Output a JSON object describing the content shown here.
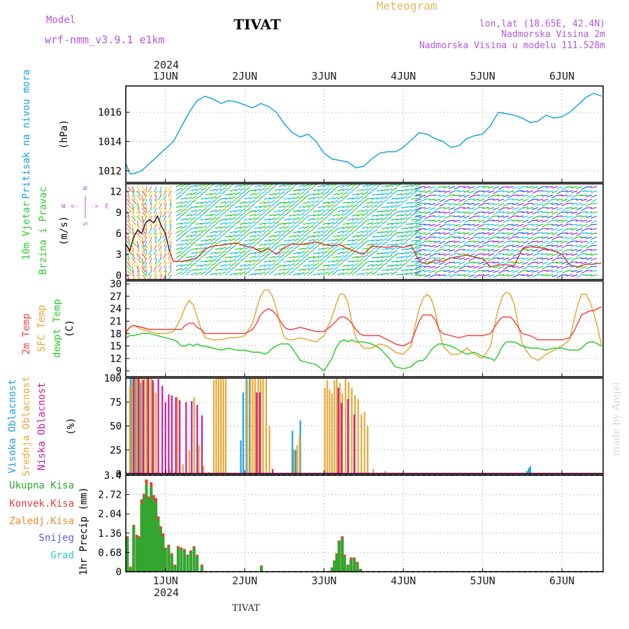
{
  "header": {
    "model_label": "Model",
    "model_name": "wrf-nmm_v3.9.1  e1km",
    "station": "TIVAT",
    "meteogram": "Meteogram",
    "lonlat": "lon,lat (18.65E, 42.4N)",
    "elevation": "Nadmorska Visina 2m",
    "model_elevation": "Nadmorska Visina u modelu 111.528m",
    "year": "2024",
    "footer_station": "TIVAT",
    "watermark": "made by Angel"
  },
  "colors": {
    "pressure": "#1aa3e0",
    "temp2m": "#f04848",
    "sfc": "#e6a838",
    "dewpt": "#2ecc2e",
    "cloud_high": "#1aa3e0",
    "cloud_mid": "#e6a838",
    "cloud_low": "#cc1a99",
    "rain_total": "#2ea82e",
    "rain_conv": "#f03a3a",
    "rain_frz": "#f08a30",
    "snow": "#6060e0",
    "hail": "#2ecccc",
    "purple_text": "#b455e0",
    "gold_text": "#e6b860"
  },
  "chart_data": [
    {
      "type": "line",
      "panel": "pressure",
      "ylabels": [
        "Pritisak na nivou mora",
        "(hPa)"
      ],
      "xlabels": [
        "1JUN",
        "2JUN",
        "3JUN",
        "4JUN",
        "5JUN",
        "6JUN"
      ],
      "yticks": [
        "1012",
        "1014",
        "1016"
      ],
      "ylim": [
        1011.2,
        1017.8
      ],
      "xlim": [
        0.5,
        6.52
      ],
      "x": [
        0.5,
        0.55,
        0.6,
        0.7,
        0.8,
        0.9,
        1.0,
        1.1,
        1.2,
        1.3,
        1.4,
        1.5,
        1.6,
        1.7,
        1.8,
        1.9,
        2.0,
        2.1,
        2.2,
        2.3,
        2.4,
        2.5,
        2.6,
        2.7,
        2.8,
        2.9,
        3.0,
        3.1,
        3.2,
        3.3,
        3.4,
        3.5,
        3.6,
        3.7,
        3.8,
        3.9,
        4.0,
        4.1,
        4.2,
        4.3,
        4.4,
        4.5,
        4.6,
        4.7,
        4.8,
        4.9,
        5.0,
        5.1,
        5.2,
        5.3,
        5.4,
        5.5,
        5.6,
        5.7,
        5.8,
        5.9,
        6.0,
        6.1,
        6.2,
        6.3,
        6.4,
        6.5
      ],
      "series": [
        {
          "key": "pressure",
          "values": [
            1012.5,
            1011.8,
            1011.8,
            1012.0,
            1012.5,
            1013.0,
            1013.5,
            1014.0,
            1015.0,
            1016.0,
            1016.8,
            1017.1,
            1016.9,
            1016.6,
            1016.8,
            1016.7,
            1016.5,
            1016.3,
            1016.6,
            1016.4,
            1016.0,
            1015.2,
            1014.6,
            1014.3,
            1014.5,
            1014.0,
            1013.2,
            1012.8,
            1012.7,
            1012.6,
            1012.2,
            1012.3,
            1012.8,
            1013.2,
            1013.3,
            1013.3,
            1013.6,
            1014.1,
            1014.6,
            1014.5,
            1014.2,
            1014.0,
            1013.6,
            1013.7,
            1014.2,
            1014.4,
            1014.5,
            1015.1,
            1016.0,
            1015.9,
            1015.8,
            1015.6,
            1015.3,
            1015.4,
            1015.8,
            1015.6,
            1015.7,
            1016.0,
            1016.5,
            1017.0,
            1017.3,
            1017.1
          ]
        }
      ]
    },
    {
      "type": "line",
      "panel": "wind",
      "ylabels": [
        "10m Vjetar",
        "Brzina i Pravac",
        "(m/s)"
      ],
      "compass": [
        "W",
        "E",
        "N",
        "S"
      ],
      "yticks": [
        "0",
        "3",
        "6",
        "9",
        "12"
      ],
      "ylim": [
        -0.6,
        13.1
      ],
      "xlim": [
        0.5,
        6.52
      ],
      "x": [
        0.5,
        0.55,
        0.6,
        0.65,
        0.7,
        0.75,
        0.8,
        0.85,
        0.9,
        0.95,
        1.0,
        1.05,
        1.1,
        1.2,
        1.3,
        1.4,
        1.5,
        1.6,
        1.7,
        1.8,
        1.9,
        2.0,
        2.1,
        2.2,
        2.3,
        2.4,
        2.5,
        2.6,
        2.7,
        2.8,
        2.9,
        3.0,
        3.1,
        3.2,
        3.3,
        3.4,
        3.5,
        3.6,
        3.7,
        3.8,
        3.9,
        4.0,
        4.1,
        4.2,
        4.3,
        4.4,
        4.5,
        4.6,
        4.7,
        4.8,
        4.9,
        5.0,
        5.1,
        5.2,
        5.3,
        5.4,
        5.5,
        5.6,
        5.7,
        5.8,
        5.9,
        6.0,
        6.1,
        6.2,
        6.3,
        6.4,
        6.5
      ],
      "series": [
        {
          "key": "speed",
          "values": [
            4.5,
            3.5,
            5.5,
            6.5,
            6.0,
            7.5,
            8.0,
            7.5,
            8.5,
            7.0,
            6.0,
            3.5,
            2.0,
            2.0,
            2.2,
            2.5,
            3.8,
            4.2,
            4.3,
            4.5,
            4.6,
            4.2,
            4.0,
            3.4,
            3.8,
            3.0,
            4.0,
            4.5,
            4.4,
            4.6,
            4.8,
            4.4,
            4.2,
            4.4,
            3.8,
            3.4,
            3.0,
            4.2,
            4.1,
            4.0,
            4.2,
            4.0,
            4.3,
            2.0,
            1.6,
            2.2,
            2.0,
            2.5,
            2.7,
            2.9,
            2.6,
            2.4,
            1.2,
            1.5,
            1.5,
            1.4,
            3.8,
            4.1,
            4.0,
            3.8,
            3.5,
            3.0,
            1.5,
            1.2,
            1.6,
            1.6,
            1.8
          ]
        }
      ]
    },
    {
      "type": "line",
      "panel": "temperature",
      "ylabels": [
        "2m Temp",
        "SFC Temp",
        "dewpt Temp",
        "(C)"
      ],
      "yticks": [
        "9",
        "12",
        "15",
        "18",
        "21",
        "24",
        "27",
        "30"
      ],
      "ylim": [
        7.6,
        30.7
      ],
      "xlim": [
        0.5,
        6.52
      ],
      "x": [
        0.5,
        0.55,
        0.6,
        0.7,
        0.8,
        0.9,
        1.0,
        1.1,
        1.15,
        1.2,
        1.25,
        1.3,
        1.35,
        1.4,
        1.45,
        1.5,
        1.6,
        1.7,
        1.8,
        1.9,
        2.0,
        2.1,
        2.15,
        2.2,
        2.25,
        2.3,
        2.35,
        2.4,
        2.45,
        2.5,
        2.55,
        2.6,
        2.7,
        2.8,
        2.9,
        3.0,
        3.1,
        3.15,
        3.2,
        3.25,
        3.3,
        3.35,
        3.4,
        3.45,
        3.5,
        3.6,
        3.7,
        3.8,
        3.9,
        4.0,
        4.1,
        4.15,
        4.2,
        4.25,
        4.3,
        4.35,
        4.4,
        4.45,
        4.5,
        4.6,
        4.7,
        4.8,
        4.9,
        5.0,
        5.1,
        5.15,
        5.2,
        5.25,
        5.3,
        5.35,
        5.4,
        5.45,
        5.5,
        5.6,
        5.7,
        5.8,
        5.9,
        6.0,
        6.1,
        6.15,
        6.2,
        6.25,
        6.3,
        6.35,
        6.4,
        6.45,
        6.5
      ],
      "series": [
        {
          "key": "sfc",
          "values": [
            18.0,
            19.5,
            20.0,
            19.0,
            18.5,
            18.0,
            18.0,
            18.5,
            20.0,
            22.0,
            24.5,
            26.0,
            25.0,
            22.0,
            19.0,
            17.0,
            16.5,
            16.5,
            17.0,
            17.0,
            17.5,
            20.5,
            24.0,
            27.0,
            28.5,
            28.5,
            27.0,
            24.0,
            20.0,
            17.0,
            16.5,
            16.5,
            17.0,
            16.5,
            16.0,
            17.5,
            22.0,
            25.0,
            27.5,
            27.5,
            25.5,
            21.0,
            17.0,
            15.5,
            14.5,
            14.5,
            15.5,
            15.0,
            13.5,
            13.0,
            15.0,
            20.0,
            24.0,
            26.5,
            27.5,
            26.5,
            23.5,
            19.0,
            15.0,
            13.0,
            13.0,
            14.5,
            13.0,
            12.0,
            15.0,
            20.0,
            24.0,
            27.0,
            28.0,
            27.5,
            25.0,
            20.0,
            15.5,
            12.5,
            11.5,
            13.0,
            14.0,
            15.0,
            16.5,
            21.0,
            25.0,
            27.5,
            27.5,
            26.0,
            23.0,
            19.5,
            15.0
          ]
        },
        {
          "key": "temp2m",
          "values": [
            18.5,
            19.5,
            20.0,
            19.5,
            19.0,
            19.0,
            19.0,
            19.0,
            19.0,
            19.0,
            20.0,
            20.5,
            20.5,
            19.5,
            19.0,
            18.0,
            18.0,
            18.0,
            18.0,
            18.0,
            18.0,
            19.0,
            20.5,
            22.5,
            23.5,
            24.0,
            23.5,
            22.5,
            21.0,
            19.5,
            19.0,
            19.0,
            19.5,
            19.0,
            18.5,
            18.5,
            20.0,
            21.0,
            22.0,
            22.0,
            21.5,
            20.5,
            19.0,
            18.0,
            17.5,
            17.5,
            17.5,
            16.5,
            15.5,
            15.0,
            16.0,
            18.5,
            21.0,
            22.5,
            22.5,
            22.5,
            21.5,
            19.0,
            18.0,
            17.5,
            17.0,
            17.5,
            17.5,
            17.5,
            18.0,
            19.5,
            21.0,
            22.0,
            22.0,
            22.0,
            21.0,
            19.5,
            18.0,
            17.5,
            16.5,
            16.5,
            16.5,
            16.5,
            17.0,
            18.5,
            20.5,
            22.5,
            23.0,
            23.5,
            23.5,
            24.0,
            24.5
          ]
        },
        {
          "key": "dewpt",
          "values": [
            17.0,
            17.5,
            17.5,
            18.0,
            18.0,
            17.5,
            17.0,
            16.5,
            16.0,
            15.0,
            15.0,
            15.5,
            15.0,
            15.5,
            15.0,
            15.0,
            14.5,
            14.0,
            14.5,
            14.0,
            14.0,
            13.5,
            13.5,
            13.5,
            13.0,
            13.5,
            14.5,
            15.0,
            15.5,
            15.5,
            15.5,
            14.5,
            11.5,
            11.0,
            10.5,
            9.0,
            12.0,
            14.5,
            16.0,
            16.5,
            16.0,
            16.5,
            16.0,
            16.0,
            16.0,
            15.5,
            14.5,
            12.5,
            10.0,
            9.5,
            10.0,
            11.0,
            11.5,
            11.5,
            12.5,
            14.0,
            15.0,
            15.5,
            15.5,
            15.0,
            14.0,
            13.0,
            13.5,
            12.5,
            12.0,
            11.5,
            13.0,
            15.0,
            16.0,
            16.0,
            16.0,
            15.5,
            15.0,
            14.5,
            14.5,
            14.0,
            14.5,
            14.5,
            14.0,
            14.0,
            14.0,
            14.5,
            15.5,
            16.0,
            16.0,
            15.5,
            15.0
          ]
        }
      ]
    },
    {
      "type": "bar",
      "panel": "clouds",
      "ylabels": [
        "Visoka Oblacnost",
        "Srednja Oblacnost",
        "Niska Oblacnost",
        "(%)"
      ],
      "yticks": [
        "0",
        "25",
        "50",
        "75",
        "100"
      ],
      "ylim": [
        0,
        100
      ],
      "xlim": [
        0.5,
        6.52
      ],
      "series": [
        {
          "key": "cloud_high",
          "x": [
            0.56,
            0.59,
            0.62,
            0.66,
            0.69,
            0.73,
            0.76,
            1.12,
            1.95,
            1.98,
            2.02,
            2.06,
            2.6,
            2.64,
            2.7,
            5.56,
            5.58,
            5.6
          ],
          "values": [
            100,
            100,
            100,
            98,
            95,
            100,
            100,
            2,
            35,
            85,
            100,
            100,
            45,
            25,
            56,
            3,
            6,
            8
          ]
        },
        {
          "key": "cloud_mid",
          "x": [
            0.55,
            0.58,
            0.61,
            0.64,
            0.67,
            0.7,
            0.73,
            0.76,
            0.79,
            0.82,
            0.85,
            0.88,
            1.05,
            1.15,
            1.22,
            1.3,
            1.36,
            1.42,
            1.48,
            1.55,
            1.61,
            1.64,
            1.67,
            1.7,
            1.73,
            1.76,
            2.03,
            2.07,
            2.1,
            2.13,
            2.17,
            2.2,
            2.23,
            2.27,
            2.31,
            2.62,
            2.66,
            2.69,
            3.01,
            3.04,
            3.07,
            3.1,
            3.13,
            3.16,
            3.2,
            3.23,
            3.27,
            3.31,
            3.35,
            3.39,
            3.43,
            3.47,
            3.51,
            3.55,
            3.62,
            3.77
          ],
          "values": [
            92,
            98,
            100,
            100,
            100,
            100,
            100,
            100,
            99,
            100,
            95,
            85,
            5,
            80,
            10,
            25,
            80,
            30,
            8,
            2,
            98,
            100,
            100,
            100,
            100,
            100,
            98,
            100,
            100,
            100,
            100,
            100,
            100,
            100,
            50,
            25,
            30,
            40,
            90,
            98,
            88,
            84,
            98,
            100,
            95,
            84,
            100,
            96,
            90,
            82,
            78,
            62,
            65,
            50,
            5,
            3
          ]
        },
        {
          "key": "cloud_low",
          "x": [
            0.6,
            0.66,
            0.72,
            0.78,
            0.84,
            0.91,
            0.96,
            1.0,
            1.04,
            1.08,
            1.13,
            1.18,
            1.26,
            1.33,
            1.4,
            1.46,
            2.15,
            2.19,
            2.35,
            3.18,
            3.22,
            3.3,
            3.38
          ],
          "values": [
            100,
            100,
            98,
            100,
            98,
            99,
            92,
            75,
            83,
            82,
            80,
            77,
            75,
            76,
            72,
            61,
            85,
            85,
            5,
            90,
            74,
            78,
            62
          ]
        }
      ]
    },
    {
      "type": "bar",
      "panel": "precip",
      "ylabels": [
        "1hr Precip (mm)"
      ],
      "legend": [
        "Ukupna Kisa",
        "Konvek.Kisa",
        "Zaledj.Kisa",
        "Snijeg",
        "Grad"
      ],
      "yticks": [
        "0",
        "0.68",
        "1.36",
        "2.04",
        "2.72",
        "3.4"
      ],
      "ylim": [
        0,
        3.4
      ],
      "xlim": [
        0.5,
        6.52
      ],
      "x": [
        0.52,
        0.56,
        0.6,
        0.64,
        0.67,
        0.7,
        0.73,
        0.76,
        0.79,
        0.82,
        0.85,
        0.88,
        0.91,
        0.94,
        0.97,
        1.0,
        1.04,
        1.08,
        1.12,
        1.16,
        1.2,
        1.24,
        1.28,
        1.32,
        1.36,
        1.4,
        1.46,
        2.21,
        3.1,
        3.13,
        3.16,
        3.19,
        3.23,
        3.26,
        3.3,
        3.34,
        3.38,
        3.42,
        3.46
      ],
      "series": [
        {
          "key": "rain_total",
          "values": [
            1.25,
            0.18,
            1.65,
            1.3,
            1.25,
            2.55,
            2.75,
            3.25,
            2.65,
            3.15,
            2.7,
            2.6,
            1.95,
            1.6,
            1.35,
            0.85,
            0.95,
            0.65,
            0.25,
            0.9,
            0.85,
            0.8,
            0.6,
            0.75,
            0.9,
            0.6,
            0.25,
            0.22,
            0.15,
            0.4,
            0.65,
            1.1,
            1.25,
            0.6,
            0.25,
            0.5,
            0.5,
            0.35,
            0.1
          ]
        },
        {
          "key": "rain_conv",
          "values": [
            1.2,
            0.15,
            1.6,
            1.2,
            1.2,
            2.4,
            2.65,
            3.1,
            2.55,
            3.0,
            2.6,
            2.45,
            1.85,
            1.5,
            1.25,
            0.8,
            0.9,
            0.6,
            0.2,
            0.85,
            0.8,
            0.75,
            0.55,
            0.7,
            0.85,
            0.55,
            0.2,
            0.2,
            0.12,
            0.38,
            0.6,
            1.05,
            1.2,
            0.55,
            0.22,
            0.45,
            0.45,
            0.3,
            0.08
          ]
        }
      ]
    }
  ]
}
